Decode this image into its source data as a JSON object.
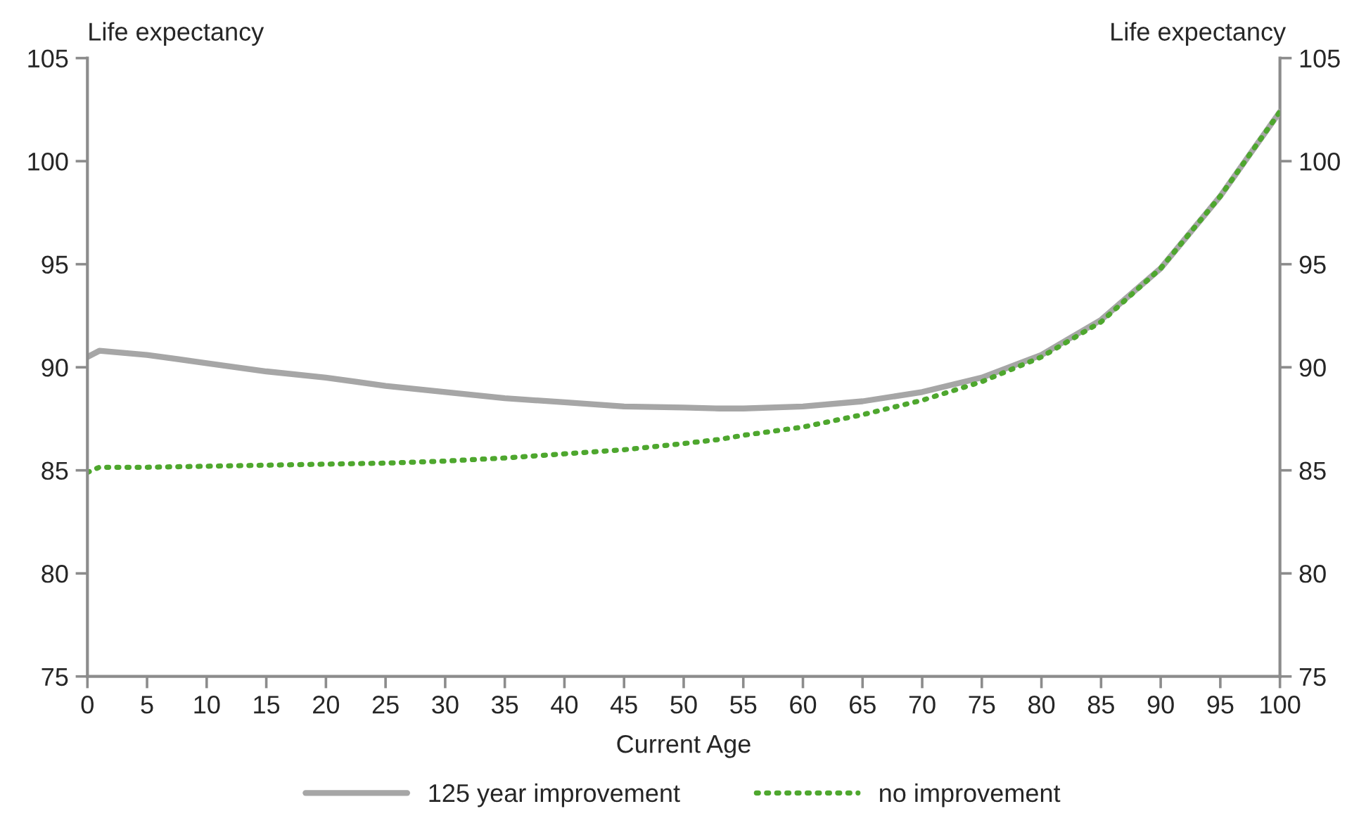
{
  "chart_data": {
    "type": "line",
    "xlabel": "Current Age",
    "ylabel": "Life expectancy",
    "y2label": "Life expectancy",
    "x": [
      0,
      1,
      5,
      10,
      15,
      20,
      25,
      30,
      35,
      40,
      45,
      50,
      53,
      55,
      60,
      65,
      70,
      75,
      80,
      85,
      90,
      95,
      100
    ],
    "series": [
      {
        "name": "125 year improvement",
        "color": "#a6a6a6",
        "line_style": "solid",
        "values": [
          90.5,
          90.8,
          90.6,
          90.2,
          89.8,
          89.5,
          89.1,
          88.8,
          88.5,
          88.3,
          88.1,
          88.05,
          88.0,
          88.0,
          88.1,
          88.35,
          88.8,
          89.5,
          90.6,
          92.3,
          94.8,
          98.3,
          102.4
        ]
      },
      {
        "name": "no improvement",
        "color": "#4ea72e",
        "line_style": "dotted",
        "values": [
          84.9,
          85.15,
          85.15,
          85.2,
          85.25,
          85.3,
          85.35,
          85.45,
          85.6,
          85.8,
          86.0,
          86.3,
          86.5,
          86.7,
          87.1,
          87.7,
          88.4,
          89.3,
          90.5,
          92.2,
          94.8,
          98.3,
          102.4
        ]
      }
    ],
    "xlim": [
      0,
      100
    ],
    "xticks": [
      0,
      5,
      10,
      15,
      20,
      25,
      30,
      35,
      40,
      45,
      50,
      55,
      60,
      65,
      70,
      75,
      80,
      85,
      90,
      95,
      100
    ],
    "ylim": [
      75,
      105
    ],
    "yticks": [
      75,
      80,
      85,
      90,
      95,
      100,
      105
    ],
    "y2lim": [
      75,
      105
    ],
    "y2ticks": [
      75,
      80,
      85,
      90,
      95,
      100,
      105
    ],
    "grid": false,
    "legend": "bottom",
    "marker": "none"
  }
}
